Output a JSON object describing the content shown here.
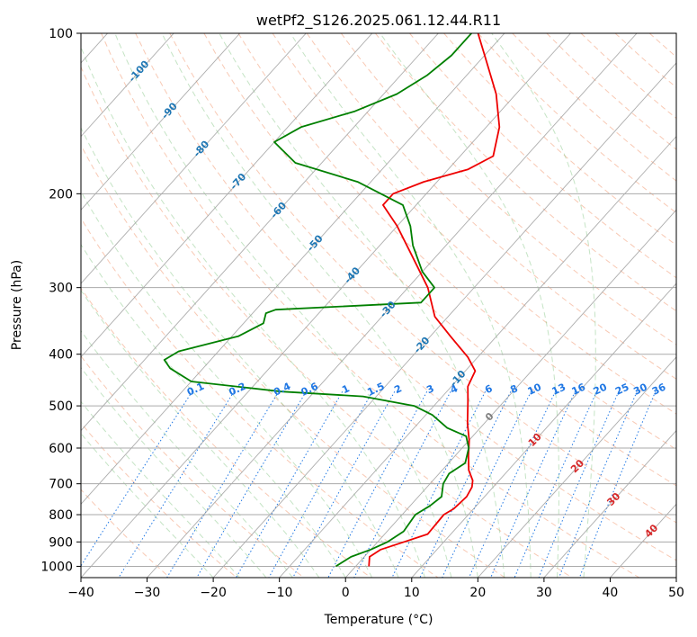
{
  "chart_data": {
    "type": "line",
    "subtype": "skew-t log-p diagram",
    "title": "wetPf2_S126.2025.061.12.44.R11",
    "xlabel": "Temperature (°C)",
    "ylabel": "Pressure (hPa)",
    "xlim": [
      -40,
      50
    ],
    "ylim_pressure": [
      1050,
      100
    ],
    "x_ticks": [
      -40,
      -30,
      -20,
      -10,
      0,
      10,
      20,
      30,
      40,
      50
    ],
    "x_tick_labels": [
      "−40",
      "−30",
      "−20",
      "−10",
      "0",
      "10",
      "20",
      "30",
      "40",
      "50"
    ],
    "y_ticks": [
      100,
      200,
      300,
      400,
      500,
      600,
      700,
      800,
      900,
      1000
    ],
    "y_tick_labels": [
      "100",
      "200",
      "300",
      "400",
      "500",
      "600",
      "700",
      "800",
      "900",
      "1000"
    ],
    "grid": true,
    "series": [
      {
        "role": "temperature",
        "color": "#ee0000",
        "points": [
          {
            "p": 1000,
            "t": 2.0
          },
          {
            "p": 960,
            "t": 0.8
          },
          {
            "p": 930,
            "t": 1.5
          },
          {
            "p": 900,
            "t": 4.0
          },
          {
            "p": 870,
            "t": 6.5
          },
          {
            "p": 800,
            "t": 6.3
          },
          {
            "p": 780,
            "t": 7.0
          },
          {
            "p": 740,
            "t": 7.3
          },
          {
            "p": 710,
            "t": 6.8
          },
          {
            "p": 690,
            "t": 6.0
          },
          {
            "p": 660,
            "t": 4.0
          },
          {
            "p": 620,
            "t": 2.0
          },
          {
            "p": 580,
            "t": 0.0
          },
          {
            "p": 540,
            "t": -2.5
          },
          {
            "p": 490,
            "t": -5.5
          },
          {
            "p": 460,
            "t": -7.5
          },
          {
            "p": 430,
            "t": -8.5
          },
          {
            "p": 405,
            "t": -11.5
          },
          {
            "p": 370,
            "t": -17.0
          },
          {
            "p": 340,
            "t": -22.0
          },
          {
            "p": 300,
            "t": -27.0
          },
          {
            "p": 260,
            "t": -34.0
          },
          {
            "p": 230,
            "t": -40.0
          },
          {
            "p": 210,
            "t": -45.0
          },
          {
            "p": 200,
            "t": -45.0
          },
          {
            "p": 190,
            "t": -42.0
          },
          {
            "p": 180,
            "t": -37.0
          },
          {
            "p": 170,
            "t": -35.0
          },
          {
            "p": 150,
            "t": -38.0
          },
          {
            "p": 130,
            "t": -43.0
          },
          {
            "p": 110,
            "t": -50.0
          },
          {
            "p": 100,
            "t": -54.0
          }
        ]
      },
      {
        "role": "dewpoint",
        "color": "#008000",
        "points": [
          {
            "p": 1000,
            "t": -3.0
          },
          {
            "p": 960,
            "t": -2.0
          },
          {
            "p": 930,
            "t": 0.0
          },
          {
            "p": 900,
            "t": 1.5
          },
          {
            "p": 860,
            "t": 2.5
          },
          {
            "p": 800,
            "t": 2.0
          },
          {
            "p": 770,
            "t": 3.0
          },
          {
            "p": 740,
            "t": 3.5
          },
          {
            "p": 700,
            "t": 2.0
          },
          {
            "p": 670,
            "t": 1.5
          },
          {
            "p": 640,
            "t": 2.5
          },
          {
            "p": 600,
            "t": 1.0
          },
          {
            "p": 570,
            "t": -1.0
          },
          {
            "p": 550,
            "t": -5.0
          },
          {
            "p": 520,
            "t": -9.0
          },
          {
            "p": 500,
            "t": -13.0
          },
          {
            "p": 480,
            "t": -22.0
          },
          {
            "p": 470,
            "t": -35.0
          },
          {
            "p": 450,
            "t": -50.0
          },
          {
            "p": 425,
            "t": -55.0
          },
          {
            "p": 410,
            "t": -57.0
          },
          {
            "p": 395,
            "t": -56.0
          },
          {
            "p": 370,
            "t": -49.0
          },
          {
            "p": 350,
            "t": -47.0
          },
          {
            "p": 335,
            "t": -48.0
          },
          {
            "p": 330,
            "t": -47.0
          },
          {
            "p": 320,
            "t": -26.0
          },
          {
            "p": 300,
            "t": -26.0
          },
          {
            "p": 280,
            "t": -30.0
          },
          {
            "p": 250,
            "t": -35.0
          },
          {
            "p": 230,
            "t": -38.0
          },
          {
            "p": 210,
            "t": -42.0
          },
          {
            "p": 190,
            "t": -52.0
          },
          {
            "p": 175,
            "t": -64.0
          },
          {
            "p": 160,
            "t": -70.0
          },
          {
            "p": 150,
            "t": -68.0
          },
          {
            "p": 140,
            "t": -62.0
          },
          {
            "p": 130,
            "t": -58.0
          },
          {
            "p": 120,
            "t": -56.0
          },
          {
            "p": 110,
            "t": -55.0
          },
          {
            "p": 100,
            "t": -55.0
          }
        ]
      }
    ],
    "isotherm_labels": [
      {
        "text": "-100",
        "p": 118,
        "t": -100
      },
      {
        "text": "-90",
        "p": 140,
        "t": -90
      },
      {
        "text": "-80",
        "p": 165,
        "t": -80
      },
      {
        "text": "-70",
        "p": 190,
        "t": -70
      },
      {
        "text": "-60",
        "p": 215,
        "t": -60
      },
      {
        "text": "-50",
        "p": 248,
        "t": -50
      },
      {
        "text": "-40",
        "p": 285,
        "t": -40
      },
      {
        "text": "-30",
        "p": 330,
        "t": -30
      },
      {
        "text": "-20",
        "p": 385,
        "t": -20
      },
      {
        "text": "-10",
        "p": 445,
        "t": -10
      }
    ],
    "mixing_ratio_labels": [
      "0.1",
      "0.2",
      "0.4",
      "0.6",
      "1",
      "1.5",
      "2",
      "3",
      "4",
      "6",
      "8",
      "10",
      "13",
      "16",
      "20",
      "25",
      "30",
      "36"
    ],
    "mixing_ratio_label_pressure": 470,
    "dry_adiabat_labels": [
      {
        "text": "0",
        "p": 525,
        "t": 0
      },
      {
        "text": "10",
        "p": 580,
        "t": 10
      },
      {
        "text": "20",
        "p": 650,
        "t": 20
      },
      {
        "text": "30",
        "p": 750,
        "t": 30
      },
      {
        "text": "40",
        "p": 860,
        "t": 40
      }
    ],
    "colors": {
      "temperature": "#ee0000",
      "dewpoint": "#008000",
      "isobar_grid": "#aaaaaa",
      "isotherm": "#999999",
      "dry_adiabat": "#f4a582",
      "moist_adiabat": "#8cc98c",
      "mixing_ratio": "#1f77e4",
      "isotherm_label": "#1f77b4",
      "dry_adiabat_label": "#d62728",
      "zero_label": "#808080"
    }
  }
}
